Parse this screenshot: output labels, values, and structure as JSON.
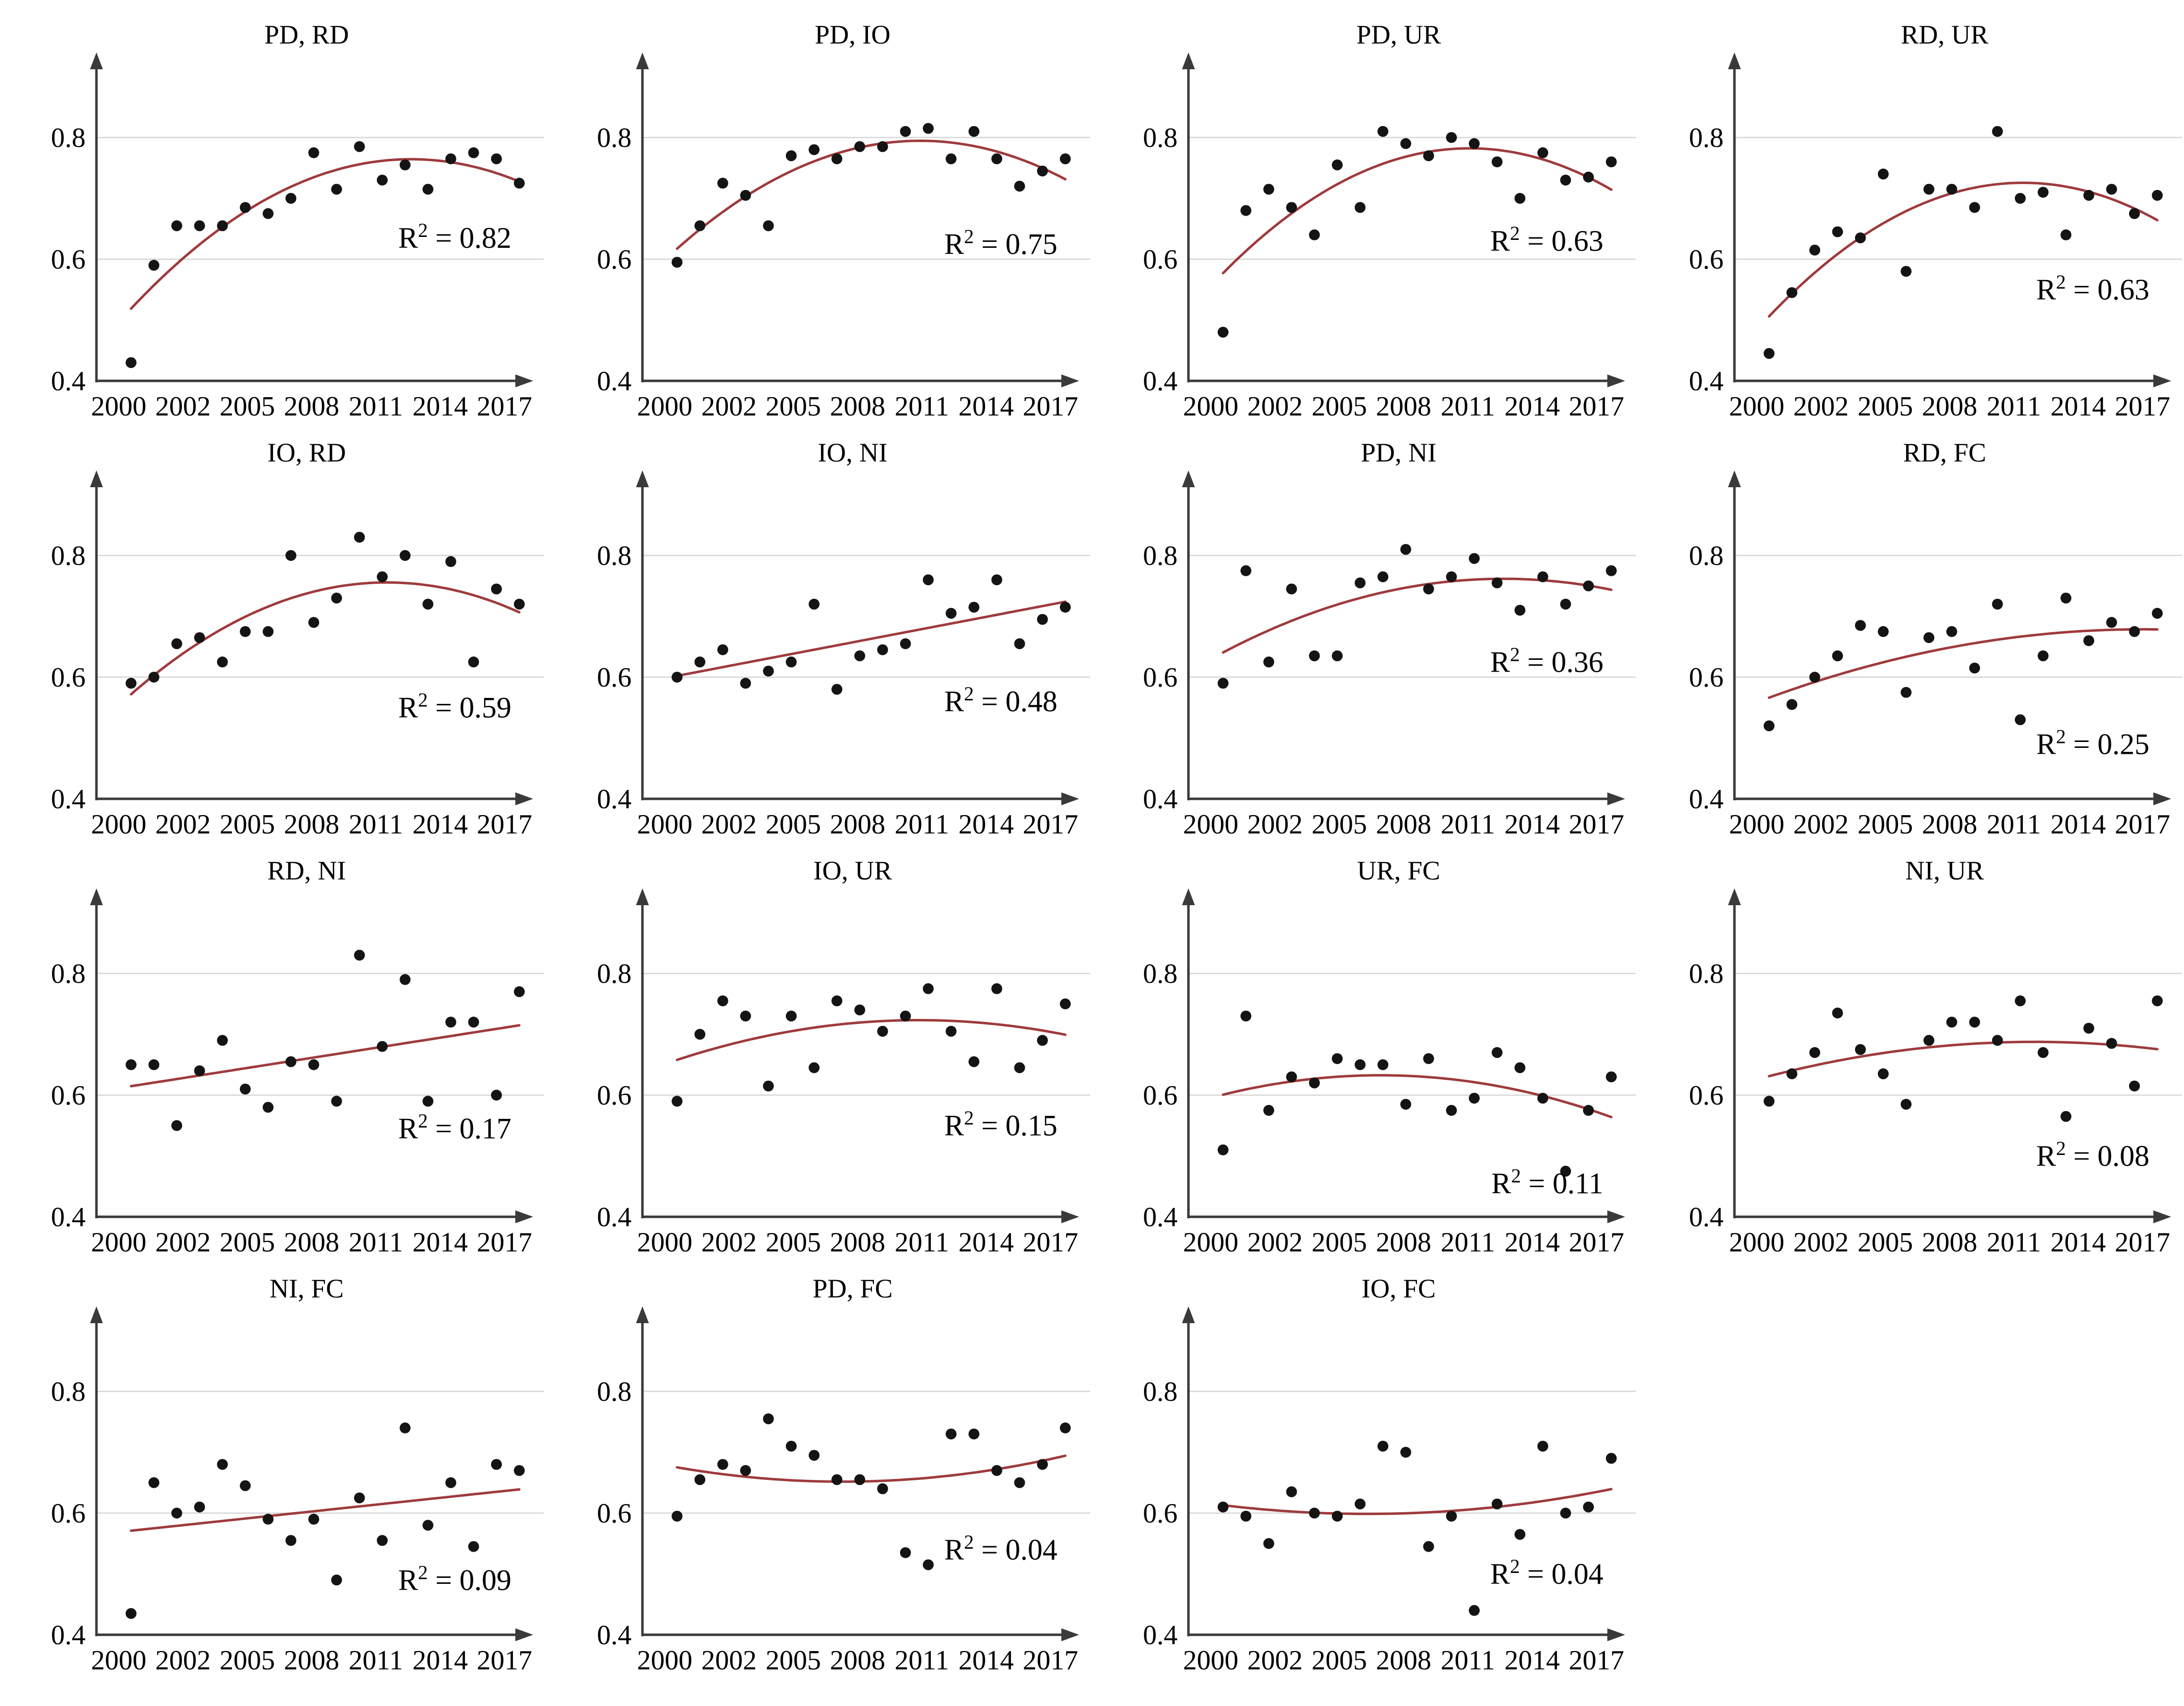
{
  "figure": {
    "description": "Grid of 15 scatter plots of pairwise index correlations over years with fitted trend lines",
    "colors": {
      "background": "#ffffff",
      "axis": "#3a3a3a",
      "grid": "#d6d6d6",
      "point": "#141414",
      "trend": "#9e3a3c",
      "text": "#000000"
    },
    "r2_prefix": "R",
    "r2_sup": "2",
    "r2_eq": " = ",
    "x_tick_labels": [
      "2000",
      "2002",
      "2005",
      "2008",
      "2011",
      "2014",
      "2017"
    ],
    "y_tick_labels": [
      "0.8",
      "0.6",
      "0.4"
    ],
    "y_tick_values": [
      0.8,
      0.6,
      0.4
    ],
    "ylim": [
      0.4,
      0.9
    ],
    "grid_values": [
      0.8,
      0.6
    ],
    "year_start": 2000,
    "year_end": 2017
  },
  "chart_data": [
    {
      "type": "scatter",
      "title": "PD, RD",
      "r2": "0.82",
      "fit": "quadratic",
      "r2_y": 0.635,
      "xlabel": "",
      "ylabel": "",
      "values": [
        0.43,
        0.59,
        0.655,
        0.655,
        0.655,
        0.685,
        0.675,
        0.7,
        0.775,
        0.715,
        0.785,
        0.73,
        0.755,
        0.715,
        0.765,
        0.775,
        0.765,
        0.725
      ]
    },
    {
      "type": "scatter",
      "title": "PD, IO",
      "r2": "0.75",
      "fit": "quadratic",
      "r2_y": 0.625,
      "xlabel": "",
      "ylabel": "",
      "values": [
        0.595,
        0.655,
        0.725,
        0.705,
        0.655,
        0.77,
        0.78,
        0.765,
        0.785,
        0.785,
        0.81,
        0.815,
        0.765,
        0.81,
        0.765,
        0.72,
        0.745,
        0.765
      ]
    },
    {
      "type": "scatter",
      "title": "PD, UR",
      "r2": "0.63",
      "fit": "quadratic",
      "r2_y": 0.63,
      "xlabel": "",
      "ylabel": "",
      "values": [
        0.48,
        0.68,
        0.715,
        0.685,
        0.64,
        0.755,
        0.685,
        0.81,
        0.79,
        0.77,
        0.8,
        0.79,
        0.76,
        0.7,
        0.775,
        0.73,
        0.735,
        0.76
      ]
    },
    {
      "type": "scatter",
      "title": "RD, UR",
      "r2": "0.63",
      "fit": "quadratic",
      "r2_y": 0.55,
      "xlabel": "",
      "ylabel": "",
      "values": [
        0.445,
        0.545,
        0.615,
        0.645,
        0.635,
        0.74,
        0.58,
        0.715,
        0.715,
        0.685,
        0.81,
        0.7,
        0.71,
        0.64,
        0.705,
        0.715,
        0.675,
        0.705
      ]
    },
    {
      "type": "scatter",
      "title": "IO, RD",
      "r2": "0.59",
      "fit": "quadratic",
      "r2_y": 0.55,
      "xlabel": "",
      "ylabel": "",
      "values": [
        0.59,
        0.6,
        0.655,
        0.665,
        0.625,
        0.675,
        0.675,
        0.8,
        0.69,
        0.73,
        0.83,
        0.765,
        0.8,
        0.72,
        0.79,
        0.625,
        0.745,
        0.72
      ]
    },
    {
      "type": "scatter",
      "title": "IO, NI",
      "r2": "0.48",
      "fit": "linear",
      "r2_y": 0.56,
      "xlabel": "",
      "ylabel": "",
      "values": [
        0.6,
        0.625,
        0.645,
        0.59,
        0.61,
        0.625,
        0.72,
        0.58,
        0.635,
        0.645,
        0.655,
        0.76,
        0.705,
        0.715,
        0.76,
        0.655,
        0.695,
        0.715
      ]
    },
    {
      "type": "scatter",
      "title": "PD, NI",
      "r2": "0.36",
      "fit": "quadratic",
      "r2_y": 0.625,
      "xlabel": "",
      "ylabel": "",
      "values": [
        0.59,
        0.775,
        0.625,
        0.745,
        0.635,
        0.635,
        0.755,
        0.765,
        0.81,
        0.745,
        0.765,
        0.795,
        0.755,
        0.71,
        0.765,
        0.72,
        0.75,
        0.775
      ]
    },
    {
      "type": "scatter",
      "title": "RD, FC",
      "r2": "0.25",
      "fit": "quadratic",
      "r2_y": 0.49,
      "xlabel": "",
      "ylabel": "",
      "values": [
        0.52,
        0.555,
        0.6,
        0.635,
        0.685,
        0.675,
        0.575,
        0.665,
        0.675,
        0.615,
        0.72,
        0.53,
        0.635,
        0.73,
        0.66,
        0.69,
        0.675,
        0.705
      ]
    },
    {
      "type": "scatter",
      "title": "RD, NI",
      "r2": "0.17",
      "fit": "linear",
      "r2_y": 0.545,
      "xlabel": "",
      "ylabel": "",
      "values": [
        0.65,
        0.65,
        0.55,
        0.64,
        0.69,
        0.61,
        0.58,
        0.655,
        0.65,
        0.59,
        0.83,
        0.68,
        0.79,
        0.59,
        0.72,
        0.72,
        0.6,
        0.77
      ]
    },
    {
      "type": "scatter",
      "title": "IO, UR",
      "r2": "0.15",
      "fit": "quadratic",
      "r2_y": 0.55,
      "xlabel": "",
      "ylabel": "",
      "values": [
        0.59,
        0.7,
        0.755,
        0.73,
        0.615,
        0.73,
        0.645,
        0.755,
        0.74,
        0.705,
        0.73,
        0.775,
        0.705,
        0.655,
        0.775,
        0.645,
        0.69,
        0.75
      ]
    },
    {
      "type": "scatter",
      "title": "UR, FC",
      "r2": "0.11",
      "fit": "quadratic",
      "r2_y": 0.455,
      "xlabel": "",
      "ylabel": "",
      "values": [
        0.51,
        0.73,
        0.575,
        0.63,
        0.62,
        0.66,
        0.65,
        0.65,
        0.585,
        0.66,
        0.575,
        0.595,
        0.67,
        0.645,
        0.595,
        0.475,
        0.575,
        0.63
      ]
    },
    {
      "type": "scatter",
      "title": "NI, UR",
      "r2": "0.08",
      "fit": "quadratic",
      "r2_y": 0.5,
      "xlabel": "",
      "ylabel": "",
      "values": [
        0.59,
        0.635,
        0.67,
        0.735,
        0.675,
        0.635,
        0.585,
        0.69,
        0.72,
        0.72,
        0.69,
        0.755,
        0.67,
        0.565,
        0.71,
        0.685,
        0.615,
        0.755
      ]
    },
    {
      "type": "scatter",
      "title": "NI, FC",
      "r2": "0.09",
      "fit": "linear",
      "r2_y": 0.49,
      "xlabel": "",
      "ylabel": "",
      "values": [
        0.435,
        0.65,
        0.6,
        0.61,
        0.68,
        0.645,
        0.59,
        0.555,
        0.59,
        0.49,
        0.625,
        0.555,
        0.74,
        0.58,
        0.65,
        0.545,
        0.68,
        0.67
      ]
    },
    {
      "type": "scatter",
      "title": "PD, FC",
      "r2": "0.04",
      "fit": "quadratic",
      "r2_y": 0.54,
      "xlabel": "",
      "ylabel": "",
      "values": [
        0.595,
        0.655,
        0.68,
        0.67,
        0.755,
        0.71,
        0.695,
        0.655,
        0.655,
        0.64,
        0.535,
        0.515,
        0.73,
        0.73,
        0.67,
        0.65,
        0.68,
        0.74
      ]
    },
    {
      "type": "scatter",
      "title": "IO, FC",
      "r2": "0.04",
      "fit": "quadratic",
      "r2_y": 0.5,
      "xlabel": "",
      "ylabel": "",
      "values": [
        0.61,
        0.595,
        0.55,
        0.635,
        0.6,
        0.595,
        0.615,
        0.71,
        0.7,
        0.545,
        0.595,
        0.44,
        0.615,
        0.565,
        0.71,
        0.6,
        0.61,
        0.69
      ]
    }
  ]
}
